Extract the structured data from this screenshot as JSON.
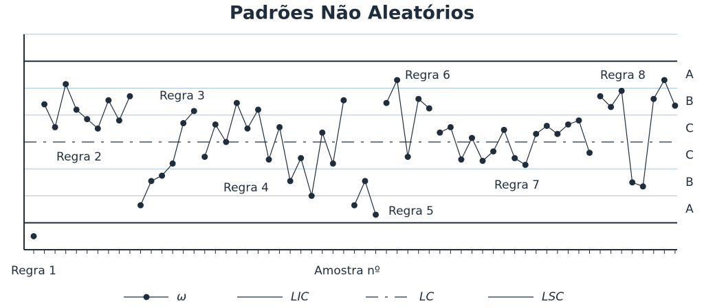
{
  "chart_data": {
    "type": "line",
    "title": "Padrões Não Aleatórios",
    "x_label": "Amostra nº",
    "x": [
      1,
      1.5,
      2,
      3,
      4,
      5,
      6,
      7,
      8,
      9,
      10,
      10.5,
      11,
      12,
      13,
      14,
      15,
      16,
      16.5,
      17,
      18,
      19,
      20,
      21,
      22,
      23,
      24,
      25,
      26,
      27,
      28,
      29,
      30,
      30.5,
      31,
      32,
      33,
      33.5,
      34,
      35,
      36,
      37,
      38,
      38.5,
      39,
      40,
      41,
      42,
      43,
      44,
      45,
      46,
      47,
      48,
      49,
      50,
      51,
      52,
      53,
      53.5,
      54,
      55,
      56,
      57,
      58,
      59,
      60,
      61
    ],
    "series": [
      {
        "name": "ω",
        "color": "#1f2d3d",
        "values": [
          -3.5,
          null,
          1.4,
          0.55,
          2.15,
          1.2,
          0.85,
          0.5,
          1.55,
          0.8,
          1.7,
          null,
          -2.35,
          -1.45,
          -1.25,
          -0.8,
          0.7,
          1.15,
          null,
          -0.55,
          0.65,
          0,
          1.45,
          0.5,
          1.2,
          -0.65,
          0.55,
          -1.45,
          -0.6,
          -2.0,
          0.35,
          -0.8,
          1.55,
          null,
          -2.35,
          -1.45,
          -2.7,
          null,
          1.45,
          2.3,
          -0.55,
          1.6,
          1.25,
          null,
          0.35,
          0.55,
          -0.65,
          0.15,
          -0.7,
          -0.35,
          0.45,
          -0.6,
          -0.85,
          0.3,
          0.6,
          0.3,
          0.65,
          0.8,
          -0.4,
          null,
          1.7,
          1.3,
          1.9,
          -1.5,
          -1.65,
          1.6,
          2.3,
          1.35
        ]
      }
    ],
    "limits": [
      {
        "name": "LIC",
        "value": -3,
        "style": "solid"
      },
      {
        "name": "LC",
        "value": 0,
        "style": "dashdot"
      },
      {
        "name": "LSC",
        "value": 3,
        "style": "solid"
      }
    ],
    "grid_lines": [
      4,
      2,
      1,
      -1,
      -2
    ],
    "yticks": [
      {
        "value": 2.5,
        "label": "A"
      },
      {
        "value": 1.5,
        "label": "B"
      },
      {
        "value": 0.5,
        "label": "C"
      },
      {
        "value": -0.5,
        "label": "C"
      },
      {
        "value": -1.5,
        "label": "B"
      },
      {
        "value": -2.5,
        "label": "A"
      }
    ],
    "xlim": [
      0.1,
      61.2
    ],
    "ylim": [
      -4,
      4
    ],
    "annotations": [
      "Regra 1",
      "Regra 2",
      "Regra 3",
      "Regra 4",
      "Regra 5",
      "Regra 6",
      "Regra 7",
      "Regra 8"
    ]
  }
}
